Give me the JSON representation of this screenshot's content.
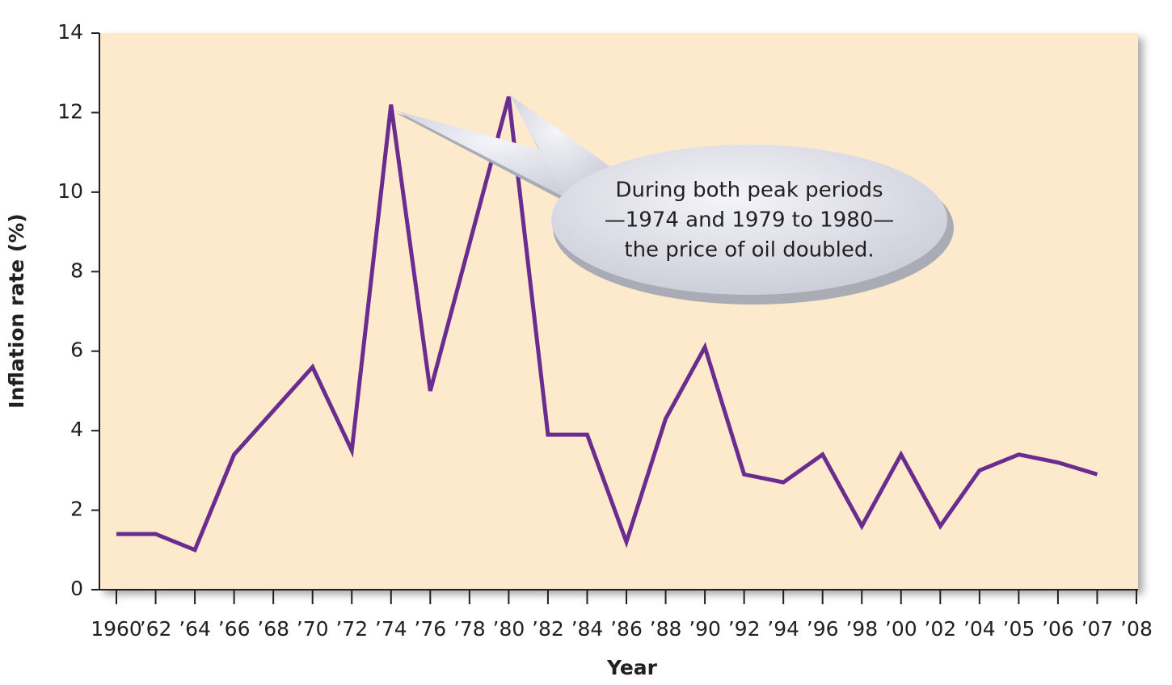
{
  "chart_data": {
    "type": "line",
    "xlabel": "Year",
    "ylabel": "Inflation rate (%)",
    "categories": [
      "1960",
      "’62",
      "’64",
      "’66",
      "’68",
      "’70",
      "’72",
      "’74",
      "’76",
      "’78",
      "’80",
      "’82",
      "’84",
      "’86",
      "’88",
      "’90",
      "’92",
      "’94",
      "’96",
      "’98",
      "’00",
      "’02",
      "’04",
      "’05",
      "’06",
      "’07",
      "’08"
    ],
    "series": [
      {
        "name": "Inflation rate",
        "color": "#6b2c8f",
        "values": [
          1.4,
          1.4,
          1.0,
          3.4,
          4.5,
          5.6,
          3.5,
          12.2,
          5.0,
          8.7,
          12.4,
          3.9,
          3.9,
          1.2,
          4.3,
          6.1,
          2.9,
          2.7,
          3.4,
          1.6,
          3.4,
          1.6,
          3.0,
          3.4,
          3.2,
          2.9,
          null
        ]
      }
    ],
    "ylim": [
      0,
      14
    ],
    "yticks": [
      0,
      2,
      4,
      6,
      8,
      10,
      12,
      14
    ],
    "grid": false,
    "background": "#fdeacd",
    "annotation": [
      "During both peak periods",
      "—1974 and 1979 to 1980—",
      "the price of oil doubled."
    ]
  }
}
